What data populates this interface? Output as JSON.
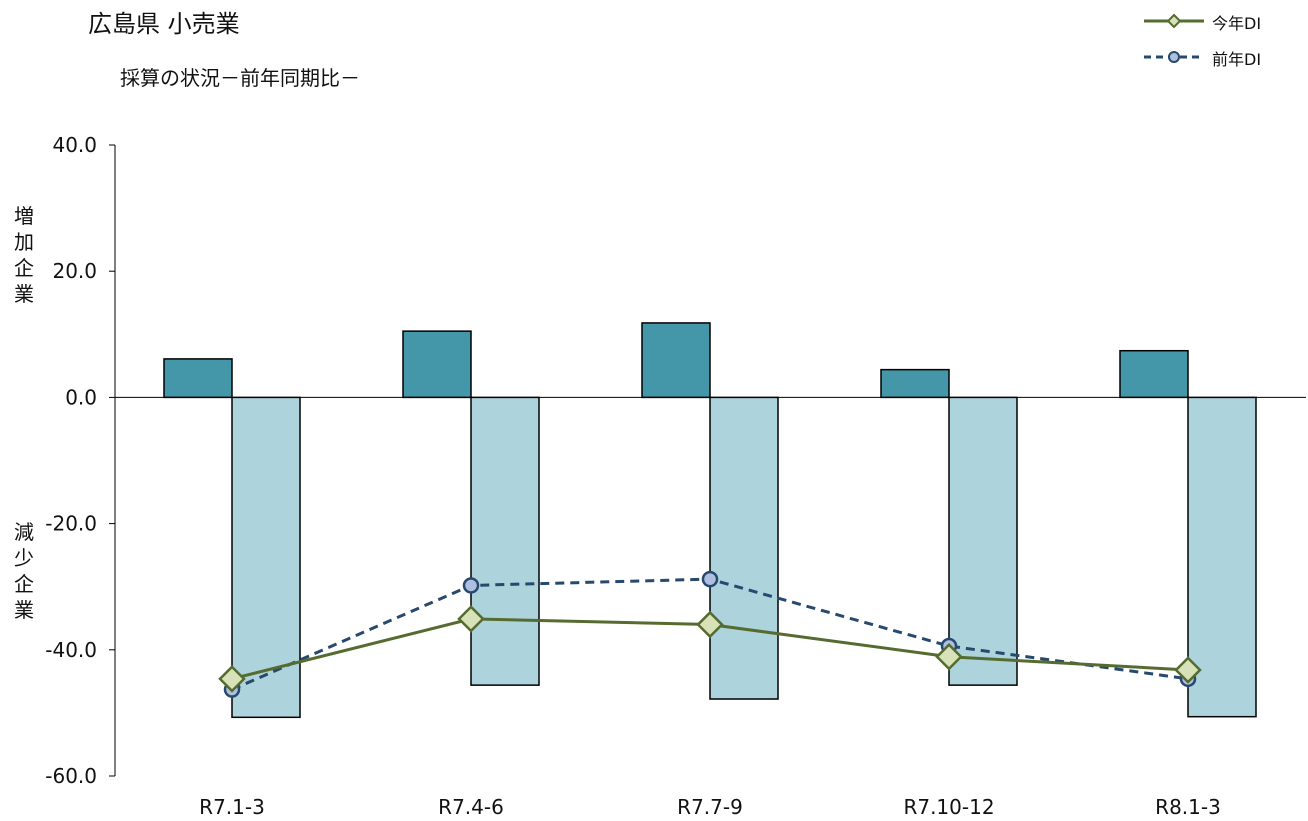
{
  "title": "広島県 小売業",
  "subtitle": "採算の状況－前年同期比－",
  "side_label_top": "増加企業",
  "side_label_bottom": "減少企業",
  "colors": {
    "increase_bar": "#4496a9",
    "decrease_bar": "#add3dc",
    "current_line": "#556b2f",
    "current_marker_fill": "#d7e2b8",
    "previous_line": "#27496d",
    "previous_marker_fill": "#aebfe0",
    "axis": "#000000"
  },
  "chart_data": {
    "type": "bar",
    "categories": [
      "R7.1-3",
      "R7.4-6",
      "R7.7-9",
      "R7.10-12",
      "R8.1-3"
    ],
    "ylim": [
      -60,
      40
    ],
    "yticks": [
      "40.0",
      "20.0",
      "0.0",
      "-20.0",
      "-40.0",
      "-60.0"
    ],
    "ytick_values": [
      40,
      20,
      0,
      -20,
      -40,
      -60
    ],
    "grid": false,
    "legend_position": "top-right",
    "bar_series": [
      {
        "key": "increase",
        "values": [
          6.1,
          10.5,
          11.8,
          4.4,
          7.4
        ]
      },
      {
        "key": "decrease",
        "values": [
          -50.7,
          -45.6,
          -47.8,
          -45.6,
          -50.6
        ]
      }
    ],
    "series": [
      {
        "name": "今年DI",
        "style": "solid",
        "marker": "diamond",
        "values": [
          -44.6,
          -35.1,
          -36.0,
          -41.1,
          -43.2
        ]
      },
      {
        "name": "前年DI",
        "style": "dashed",
        "marker": "circle",
        "values": [
          -46.3,
          -29.8,
          -28.8,
          -39.4,
          -44.6
        ]
      }
    ]
  }
}
